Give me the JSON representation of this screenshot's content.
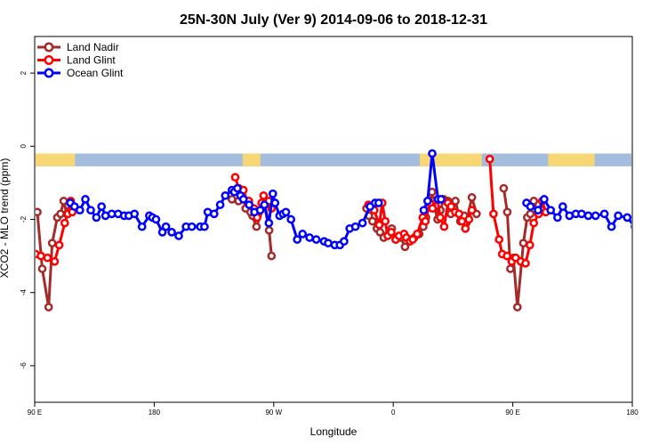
{
  "chart_data": {
    "type": "line",
    "title": "25N-30N July (Ver 9)   2014-09-06 to 2018-12-31",
    "xlabel": "Longitude",
    "ylabel": "XCO2 - MLO trend (ppm)",
    "xlim": [
      -90,
      180
    ],
    "ylim": [
      -7,
      3
    ],
    "x_ticks": [
      {
        "value": -90,
        "label": "90 E"
      },
      {
        "value": -36,
        "label": "180"
      },
      {
        "value": 18,
        "label": "90 W"
      },
      {
        "value": 72,
        "label": "0"
      },
      {
        "value": 126,
        "label": "90 E"
      },
      {
        "value": 180,
        "label": "180"
      }
    ],
    "y_ticks": [
      -6,
      -4,
      -2,
      0,
      2
    ],
    "grid": false,
    "legend_position": "top-left",
    "land_mask_bar": {
      "y_range": [
        -0.55,
        -0.2
      ],
      "ocean_color": "#A4BDDC",
      "land_color": "#F7D676",
      "land_segments": [
        [
          -90,
          -71.8
        ],
        [
          4,
          12
        ],
        [
          84,
          112
        ],
        [
          142,
          163
        ]
      ]
    },
    "series": [
      {
        "name": "Land Nadir",
        "color": "#A52A2A",
        "segments": [
          {
            "x": [
              -88.8,
              -86.6,
              -83.7,
              -82.1,
              -79.8,
              -78.3,
              -76.9,
              -75.5,
              -73.9
            ],
            "y": [
              -1.8,
              -3.35,
              -4.4,
              -2.65,
              -1.95,
              -1.85,
              -1.5,
              -1.85,
              -1.75
            ]
          },
          {
            "x": [
              -0.9,
              2.1,
              3.7,
              6.3,
              5.3,
              8.4,
              7.5,
              10.2,
              13.8,
              15.9,
              17.0
            ],
            "y": [
              -1.45,
              -1.5,
              -1.4,
              -1.5,
              -1.7,
              -1.9,
              -1.8,
              -2.2,
              -1.6,
              -2.3,
              -3.0
            ]
          },
          {
            "x": [
              59.9,
              61.0,
              62.6,
              64.6,
              66.0,
              67.7,
              69.8,
              71.3,
              73.1,
              75.4,
              77.3,
              79.4,
              81.5,
              83.7,
              85.6,
              86.8,
              89.5,
              90.0,
              92.0,
              93.3,
              94.8,
              96.7,
              98.0,
              100.1,
              102.3,
              104.0,
              105.0,
              107.5,
              109.6
            ],
            "y": [
              -1.7,
              -1.9,
              -2.05,
              -2.25,
              -2.35,
              -2.5,
              -2.4,
              -2.25,
              -2.55,
              -2.5,
              -2.75,
              -2.55,
              -2.5,
              -2.4,
              -2.2,
              -1.95,
              -1.25,
              -1.5,
              -2.0,
              -1.75,
              -1.45,
              -1.5,
              -1.85,
              -1.5,
              -2.05,
              -1.9,
              -2.1,
              -1.4,
              -1.85
            ]
          },
          {
            "x": [
              121.9,
              123.5,
              124.9,
              126.3,
              128.1,
              130.8,
              132.5,
              133.9,
              135.5,
              137.5,
              139.2
            ],
            "y": [
              -1.15,
              -1.8,
              -3.35,
              -3.05,
              -4.4,
              -2.65,
              -1.95,
              -1.85,
              -1.5,
              -1.85,
              -1.75
            ]
          }
        ]
      },
      {
        "name": "Land Glint",
        "color": "#FF0000",
        "segments": [
          {
            "x": [
              -89.6,
              -87.2,
              -84.2,
              -81.0,
              -78.9,
              -76.4,
              -75.0,
              -73.7,
              -73.0
            ],
            "y": [
              -2.95,
              -3.0,
              -3.05,
              -3.15,
              -2.7,
              -2.1,
              -1.85,
              -1.5,
              -1.8
            ]
          },
          {
            "x": [
              0.6,
              2.2,
              4.3,
              6.2,
              6.8,
              9.1,
              10.5,
              12.5,
              13.4,
              15.8,
              17.0
            ],
            "y": [
              -0.85,
              -1.15,
              -1.2,
              -1.55,
              -1.5,
              -1.7,
              -1.95,
              -1.55,
              -1.35,
              -1.5,
              -1.7
            ]
          },
          {
            "x": [
              60.8,
              62.1,
              63.4,
              65.7,
              67.0,
              68.4,
              69.5,
              71.1,
              73.1,
              74.6,
              76.9,
              77.9,
              79.6,
              80.8,
              82.8,
              85.3,
              86.5,
              88.6,
              89.7,
              92.0,
              93.2,
              95.0,
              96.7,
              98.1,
              100.0,
              101.7,
              103.0,
              104.6,
              106.2,
              107.5
            ],
            "y": [
              -1.6,
              -1.65,
              -1.75,
              -2.15,
              -1.55,
              -2.05,
              -2.45,
              -2.35,
              -2.55,
              -2.45,
              -2.4,
              -2.5,
              -2.6,
              -2.55,
              -2.4,
              -1.95,
              -2.05,
              -1.55,
              -1.7,
              -1.45,
              -1.95,
              -2.2,
              -1.55,
              -1.65,
              -1.8,
              -1.85,
              -2.05,
              -2.25,
              -2.0,
              -1.75
            ]
          },
          {
            "x": [
              115.6,
              117.3,
              119.8,
              121.2,
              123.4,
              125.5,
              127.3,
              129.6,
              131.8,
              133.7,
              135.5,
              137.7,
              139.3,
              140.9
            ],
            "y": [
              -0.35,
              -1.85,
              -2.55,
              -2.95,
              -3.0,
              -3.15,
              -3.05,
              -3.15,
              -3.2,
              -2.7,
              -2.1,
              -1.85,
              -1.5,
              -1.8
            ]
          }
        ]
      },
      {
        "name": "Ocean Glint",
        "color": "#0000FF",
        "segments": [
          {
            "x": [
              -73.9,
              -72.0,
              -69.6,
              -67.1,
              -64.7,
              -62.1,
              -59.8,
              -58.0,
              -55.2,
              -52.3,
              -49.6,
              -47.5,
              -44.9,
              -41.5,
              -38.2,
              -36.8,
              -35.2,
              -32.3,
              -30.7,
              -28.1,
              -24.9,
              -21.6,
              -19.0,
              -15.2,
              -13.3,
              -11.8,
              -8.9,
              -6.2,
              -3.9,
              -0.9,
              0.2,
              1.6,
              3.0,
              4.3,
              6.9,
              9.3,
              11.9,
              13.8,
              15.8,
              17.6,
              18.6,
              20.6,
              22.2,
              23.5,
              25.8,
              28.6,
              31.0,
              34.2,
              37.2,
              40.8,
              42.6,
              45.6,
              47.9,
              49.8,
              52.3,
              54.9,
              58.1,
              61.5,
              63.8,
              65.4
            ],
            "y": [
              -1.55,
              -1.65,
              -1.75,
              -1.45,
              -1.75,
              -1.95,
              -1.65,
              -1.9,
              -1.85,
              -1.85,
              -1.9,
              -1.9,
              -1.85,
              -2.2,
              -1.9,
              -1.95,
              -2.0,
              -2.35,
              -2.2,
              -2.35,
              -2.45,
              -2.2,
              -2.2,
              -2.2,
              -2.2,
              -1.8,
              -1.85,
              -1.6,
              -1.35,
              -1.2,
              -1.25,
              -1.15,
              -1.35,
              -1.45,
              -1.6,
              -1.8,
              -1.75,
              -1.6,
              -2.1,
              -1.3,
              -1.55,
              -1.9,
              -1.85,
              -1.8,
              -2.0,
              -2.55,
              -2.4,
              -2.5,
              -2.55,
              -2.6,
              -2.65,
              -2.7,
              -2.7,
              -2.6,
              -2.25,
              -2.2,
              -2.1,
              -1.65,
              -1.55,
              -1.55
            ]
          },
          {
            "x": [
              85.8,
              87.5,
              89.6,
              92.2,
              93.6
            ],
            "y": [
              -1.75,
              -1.5,
              -0.2,
              -1.45,
              -1.45
            ]
          },
          {
            "x": [
              132.2,
              134.0,
              137.4,
              140.2,
              143.1,
              146.2,
              148.6,
              151.6,
              154.5,
              157.1,
              160.1,
              163.4,
              167.4,
              170.6,
              173.6,
              177.7,
              181.2
            ],
            "y": [
              -1.55,
              -1.65,
              -1.75,
              -1.45,
              -1.75,
              -1.95,
              -1.65,
              -1.9,
              -1.85,
              -1.85,
              -1.9,
              -1.9,
              -1.85,
              -2.2,
              -1.9,
              -1.95,
              -2.2
            ]
          }
        ]
      }
    ]
  }
}
